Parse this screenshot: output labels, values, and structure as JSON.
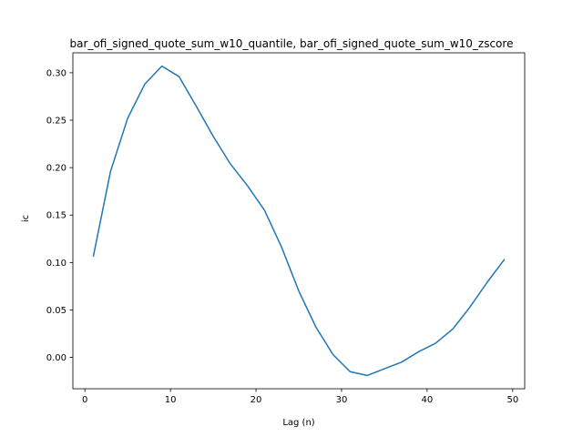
{
  "chart_data": {
    "type": "line",
    "title": "bar_ofi_signed_quote_sum_w10_quantile, bar_ofi_signed_quote_sum_w10_zscore",
    "xlabel": "Lag (n)",
    "ylabel": "ic",
    "xlim": [
      -1.4,
      51.4
    ],
    "ylim": [
      -0.033,
      0.321
    ],
    "xticks": [
      0,
      10,
      20,
      30,
      40,
      50
    ],
    "yticks": [
      0.0,
      0.05,
      0.1,
      0.15,
      0.2,
      0.25,
      0.3
    ],
    "xtick_labels": [
      "0",
      "10",
      "20",
      "30",
      "40",
      "50"
    ],
    "ytick_labels": [
      "0.00",
      "0.05",
      "0.10",
      "0.15",
      "0.20",
      "0.25",
      "0.30"
    ],
    "grid": false,
    "series": [
      {
        "color": "#1f77b4",
        "x": [
          1,
          3,
          5,
          7,
          9,
          11,
          13,
          15,
          17,
          19,
          21,
          23,
          25,
          27,
          29,
          31,
          33,
          35,
          37,
          39,
          41,
          43,
          45,
          47,
          49
        ],
        "y": [
          0.107,
          0.196,
          0.252,
          0.288,
          0.307,
          0.296,
          0.265,
          0.233,
          0.204,
          0.181,
          0.155,
          0.116,
          0.07,
          0.032,
          0.003,
          -0.015,
          -0.019,
          -0.012,
          -0.005,
          0.006,
          0.015,
          0.03,
          0.053,
          0.079,
          0.103
        ]
      }
    ]
  }
}
